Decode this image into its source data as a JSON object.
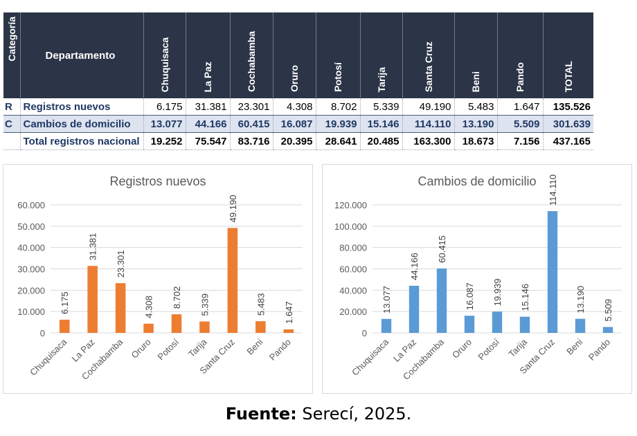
{
  "table": {
    "headers": {
      "categoria": "Categoría",
      "departamento": "Departamento",
      "departments": [
        "Chuquisaca",
        "La Paz",
        "Cochabamba",
        "Oruro",
        "Potosí",
        "Tarija",
        "Santa Cruz",
        "Beni",
        "Pando"
      ],
      "total": "TOTAL"
    },
    "rows": [
      {
        "cat": "R",
        "name": "Registros nuevos",
        "values": [
          "6.175",
          "31.381",
          "23.301",
          "4.308",
          "8.702",
          "5.339",
          "49.190",
          "5.483",
          "1.647"
        ],
        "total": "135.526"
      },
      {
        "cat": "C",
        "name": "Cambios de domicilio",
        "values": [
          "13.077",
          "44.166",
          "60.415",
          "16.087",
          "19.939",
          "15.146",
          "114.110",
          "13.190",
          "5.509"
        ],
        "total": "301.639"
      },
      {
        "cat": "",
        "name": "Total registros nacional",
        "values": [
          "19.252",
          "75.547",
          "83.716",
          "20.395",
          "28.641",
          "20.485",
          "163.300",
          "18.673",
          "7.156"
        ],
        "total": "437.165"
      }
    ]
  },
  "chart_data": [
    {
      "type": "bar",
      "title": "Registros nuevos",
      "categories": [
        "Chuquisaca",
        "La Paz",
        "Cochabamba",
        "Oruro",
        "Potosí",
        "Tarija",
        "Santa Cruz",
        "Beni",
        "Pando"
      ],
      "values": [
        6175,
        31381,
        23301,
        4308,
        8702,
        5339,
        49190,
        5483,
        1647
      ],
      "data_labels": [
        "6.175",
        "31.381",
        "23.301",
        "4.308",
        "8.702",
        "5.339",
        "49.190",
        "5.483",
        "1.647"
      ],
      "ylim": [
        0,
        60000
      ],
      "yticks": [
        0,
        10000,
        20000,
        30000,
        40000,
        50000,
        60000
      ],
      "ytick_labels": [
        "0",
        "10.000",
        "20.000",
        "30.000",
        "40.000",
        "50.000",
        "60.000"
      ],
      "color": "#ed7d31",
      "grid": true
    },
    {
      "type": "bar",
      "title": "Cambios de domicilio",
      "categories": [
        "Chuquisaca",
        "La Paz",
        "Cochabamba",
        "Oruro",
        "Potosí",
        "Tarija",
        "Santa Cruz",
        "Beni",
        "Pando"
      ],
      "values": [
        13077,
        44166,
        60415,
        16087,
        19939,
        15146,
        114110,
        13190,
        5509
      ],
      "data_labels": [
        "13.077",
        "44.166",
        "60.415",
        "16.087",
        "19.939",
        "15.146",
        "114.110",
        "13.190",
        "5.509"
      ],
      "ylim": [
        0,
        120000
      ],
      "yticks": [
        0,
        20000,
        40000,
        60000,
        80000,
        100000,
        120000
      ],
      "ytick_labels": [
        "0",
        "20.000",
        "40.000",
        "60.000",
        "80.000",
        "100.000",
        "120.000"
      ],
      "color": "#5b9bd5",
      "grid": true
    }
  ],
  "source": {
    "label": "Fuente:",
    "text": " Serecí, 2025."
  }
}
